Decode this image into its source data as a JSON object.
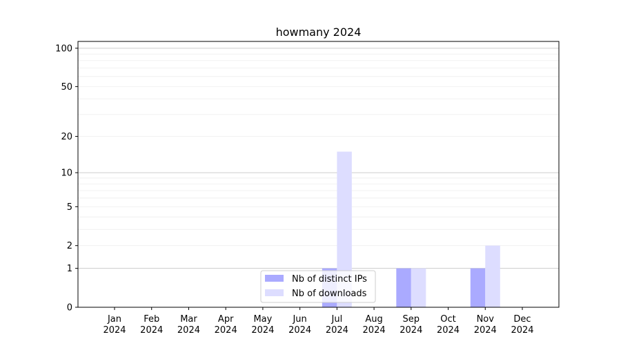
{
  "chart_data": {
    "type": "bar",
    "title": "howmany 2024",
    "xlabel": "",
    "ylabel": "",
    "y_scale": "log10(1+y)",
    "ylim": [
      0,
      113
    ],
    "y_ticks": [
      0,
      1,
      2,
      5,
      10,
      20,
      50,
      100
    ],
    "grid": true,
    "legend_position": "lower center",
    "categories": [
      "Jan\n2024",
      "Feb\n2024",
      "Mar\n2024",
      "Apr\n2024",
      "May\n2024",
      "Jun\n2024",
      "Jul\n2024",
      "Aug\n2024",
      "Sep\n2024",
      "Oct\n2024",
      "Nov\n2024",
      "Dec\n2024"
    ],
    "series": [
      {
        "name": "Nb of distinct IPs",
        "color": "#aaaaff",
        "values": [
          0,
          0,
          0,
          0,
          0,
          0,
          1,
          0,
          1,
          0,
          1,
          0
        ]
      },
      {
        "name": "Nb of downloads",
        "color": "#ddddff",
        "values": [
          0,
          0,
          0,
          0,
          0,
          0,
          15,
          0,
          1,
          0,
          2,
          0
        ]
      }
    ]
  }
}
